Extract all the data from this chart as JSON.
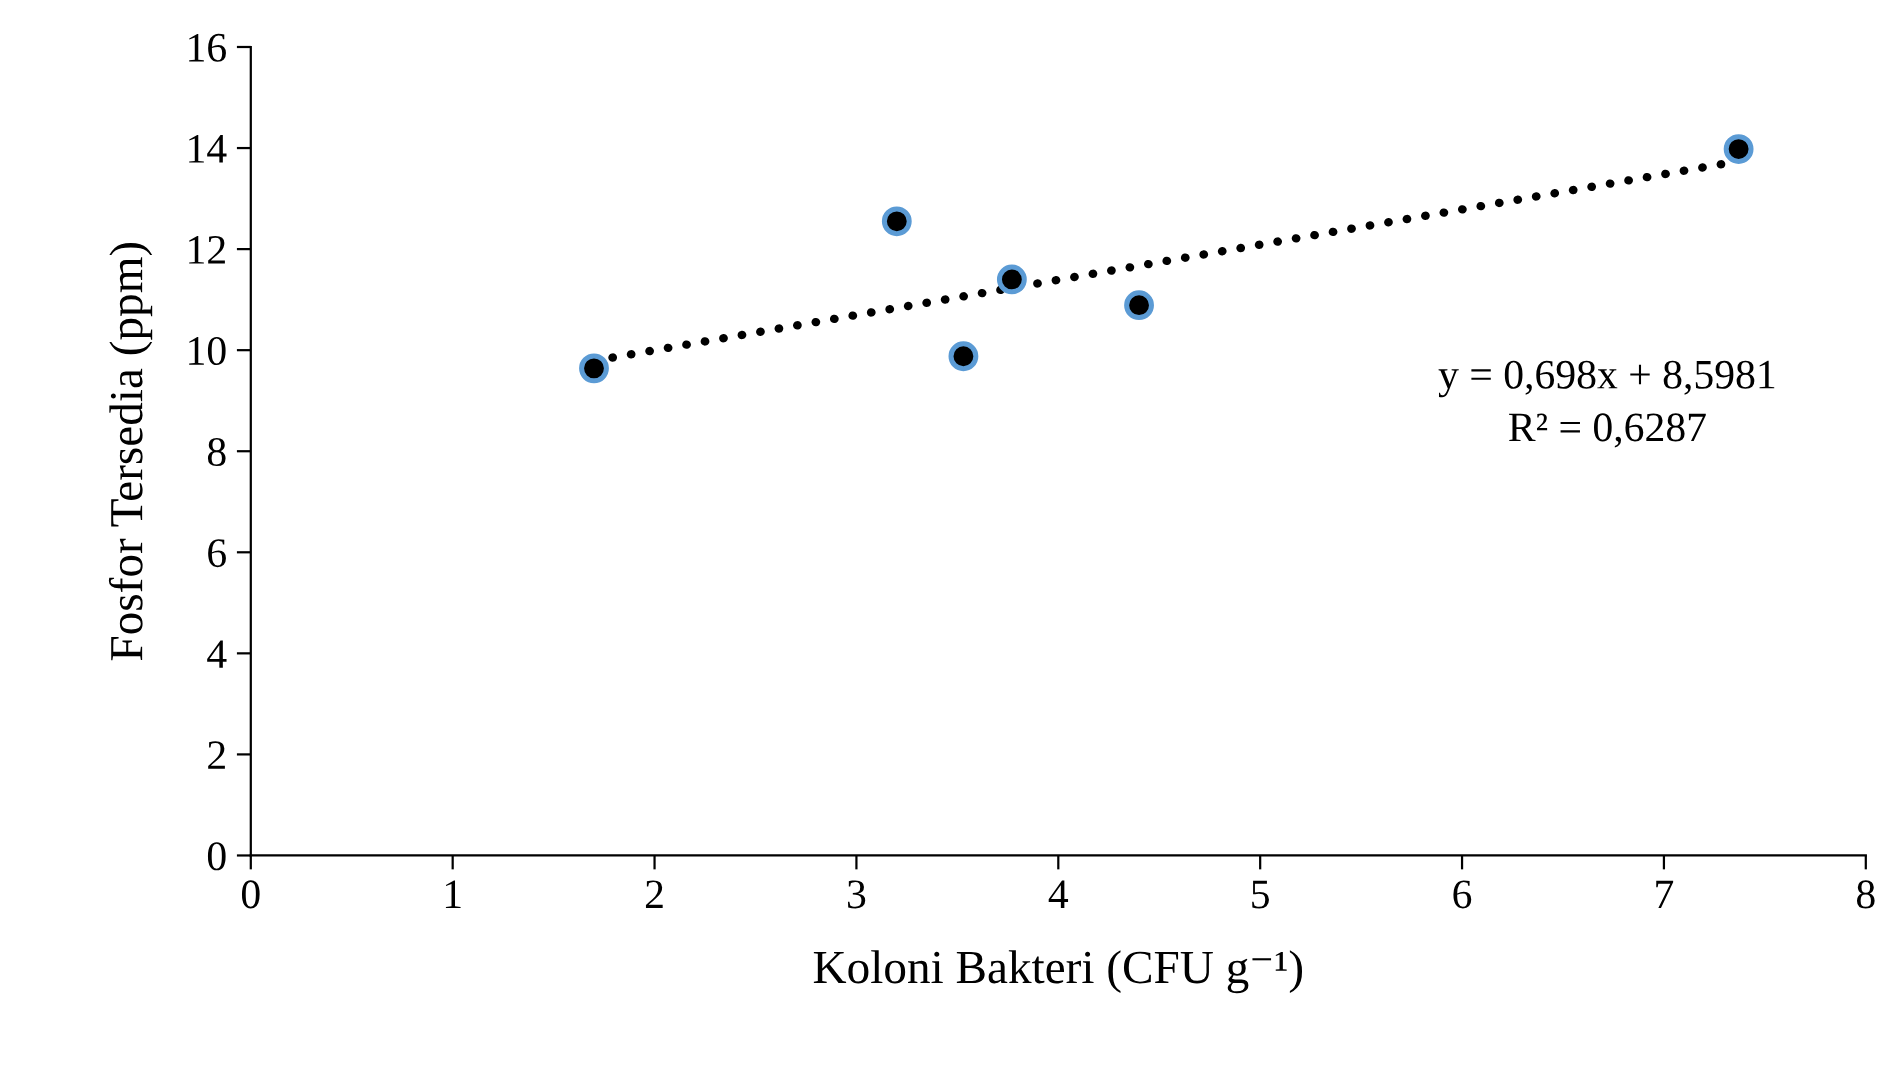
{
  "chart_data": {
    "type": "scatter",
    "xlabel": "Koloni Bakteri (CFU g⁻¹)",
    "ylabel": "Fosfor Tersedia (ppm)",
    "series": [
      {
        "color": "#000000",
        "marker": "circle",
        "x": [
          1.7,
          3.2,
          3.53,
          3.77,
          4.4,
          7.37
        ],
        "values": [
          9.64,
          12.55,
          9.88,
          11.4,
          10.89,
          13.98
        ]
      },
      {
        "type": "line",
        "color": "#000000",
        "line_style": "dotted",
        "marker": "none",
        "x": [
          1.7,
          7.37
        ],
        "values": [
          9.79,
          13.74
        ]
      }
    ],
    "annotations": [
      "y = 0,698x + 8,5981",
      "R² = 0,6287"
    ],
    "xlim": [
      0,
      8
    ],
    "xticks": [
      0,
      1,
      2,
      3,
      4,
      5,
      6,
      7,
      8
    ],
    "ylim": [
      0,
      16
    ],
    "yticks": [
      0,
      2,
      4,
      6,
      8,
      10,
      12,
      14,
      16
    ],
    "grid": false,
    "legend": false
  }
}
